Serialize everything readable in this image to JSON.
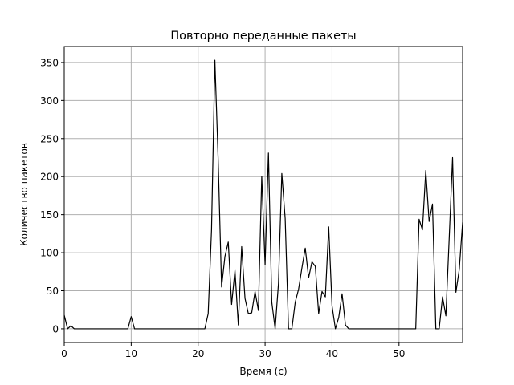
{
  "chart_data": {
    "type": "line",
    "title": "Повторно переданные пакеты",
    "xlabel": "Время (с)",
    "ylabel": "Количество пакетов",
    "xlim": [
      0,
      59.5
    ],
    "ylim": [
      -18,
      371
    ],
    "xticks": [
      0,
      10,
      20,
      30,
      40,
      50
    ],
    "yticks": [
      0,
      50,
      100,
      150,
      200,
      250,
      300,
      350
    ],
    "grid": true,
    "series": [
      {
        "color": "#000000",
        "x": [
          0,
          0.5,
          1,
          1.5,
          2,
          3,
          4,
          5,
          6,
          7,
          8,
          9,
          9.5,
          10,
          10.5,
          11,
          12,
          13,
          14,
          15,
          16,
          17,
          18,
          19,
          20,
          21,
          21.5,
          22,
          22.5,
          23,
          23.5,
          24,
          24.5,
          25,
          25.5,
          26,
          26.5,
          27,
          27.5,
          28,
          28.5,
          29,
          29.5,
          30,
          30.5,
          31,
          31.5,
          32,
          32.5,
          33,
          33.5,
          34,
          34.5,
          35,
          35.5,
          36,
          36.5,
          37,
          37.5,
          38,
          38.5,
          39,
          39.5,
          40,
          40.5,
          41,
          41.5,
          42,
          42.5,
          43,
          44,
          45,
          46,
          47,
          48,
          49,
          50,
          51,
          52,
          52.5,
          53,
          53.5,
          54,
          54.5,
          55,
          55.5,
          56,
          56.5,
          57,
          57.5,
          58,
          58.5,
          59,
          59.5
        ],
        "y": [
          18,
          0,
          4,
          0,
          0,
          0,
          0,
          0,
          0,
          0,
          0,
          0,
          0,
          16,
          0,
          0,
          0,
          0,
          0,
          0,
          0,
          0,
          0,
          0,
          0,
          0,
          20,
          130,
          353,
          220,
          55,
          95,
          114,
          32,
          77,
          5,
          108,
          40,
          20,
          21,
          49,
          24,
          200,
          84,
          231,
          35,
          0,
          60,
          204,
          145,
          0,
          0,
          35,
          52,
          80,
          106,
          67,
          88,
          82,
          20,
          49,
          42,
          134,
          30,
          0,
          15,
          46,
          5,
          0,
          0,
          0,
          0,
          0,
          0,
          0,
          0,
          0,
          0,
          0,
          0,
          144,
          130,
          208,
          141,
          164,
          0,
          0,
          42,
          17,
          120,
          225,
          48,
          78,
          140
        ]
      }
    ]
  }
}
